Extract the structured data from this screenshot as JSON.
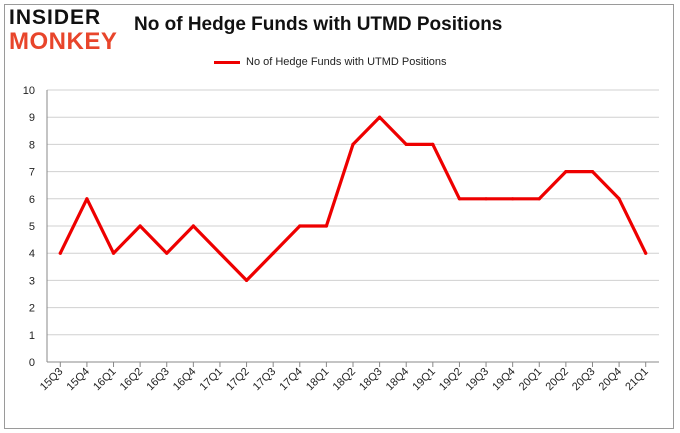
{
  "logo": {
    "line1": "INSIDER",
    "line2": "MONKEY"
  },
  "chart_data": {
    "type": "line",
    "title": "No of Hedge Funds with UTMD Positions",
    "xlabel": "",
    "ylabel": "",
    "ylim": [
      0,
      10
    ],
    "yticks": [
      0,
      1,
      2,
      3,
      4,
      5,
      6,
      7,
      8,
      9,
      10
    ],
    "grid": true,
    "legend_position": "top-center",
    "categories": [
      "15Q3",
      "15Q4",
      "16Q1",
      "16Q2",
      "16Q3",
      "16Q4",
      "17Q1",
      "17Q2",
      "17Q3",
      "17Q4",
      "18Q1",
      "18Q2",
      "18Q3",
      "18Q4",
      "19Q1",
      "19Q2",
      "19Q3",
      "19Q4",
      "20Q1",
      "20Q2",
      "20Q3",
      "20Q4",
      "21Q1"
    ],
    "series": [
      {
        "name": "No of Hedge Funds with UTMD  Positions",
        "color": "#ee0000",
        "values": [
          4,
          6,
          4,
          5,
          4,
          5,
          4,
          3,
          4,
          5,
          5,
          8,
          9,
          8,
          8,
          6,
          6,
          6,
          6,
          7,
          7,
          6,
          4
        ]
      }
    ]
  }
}
